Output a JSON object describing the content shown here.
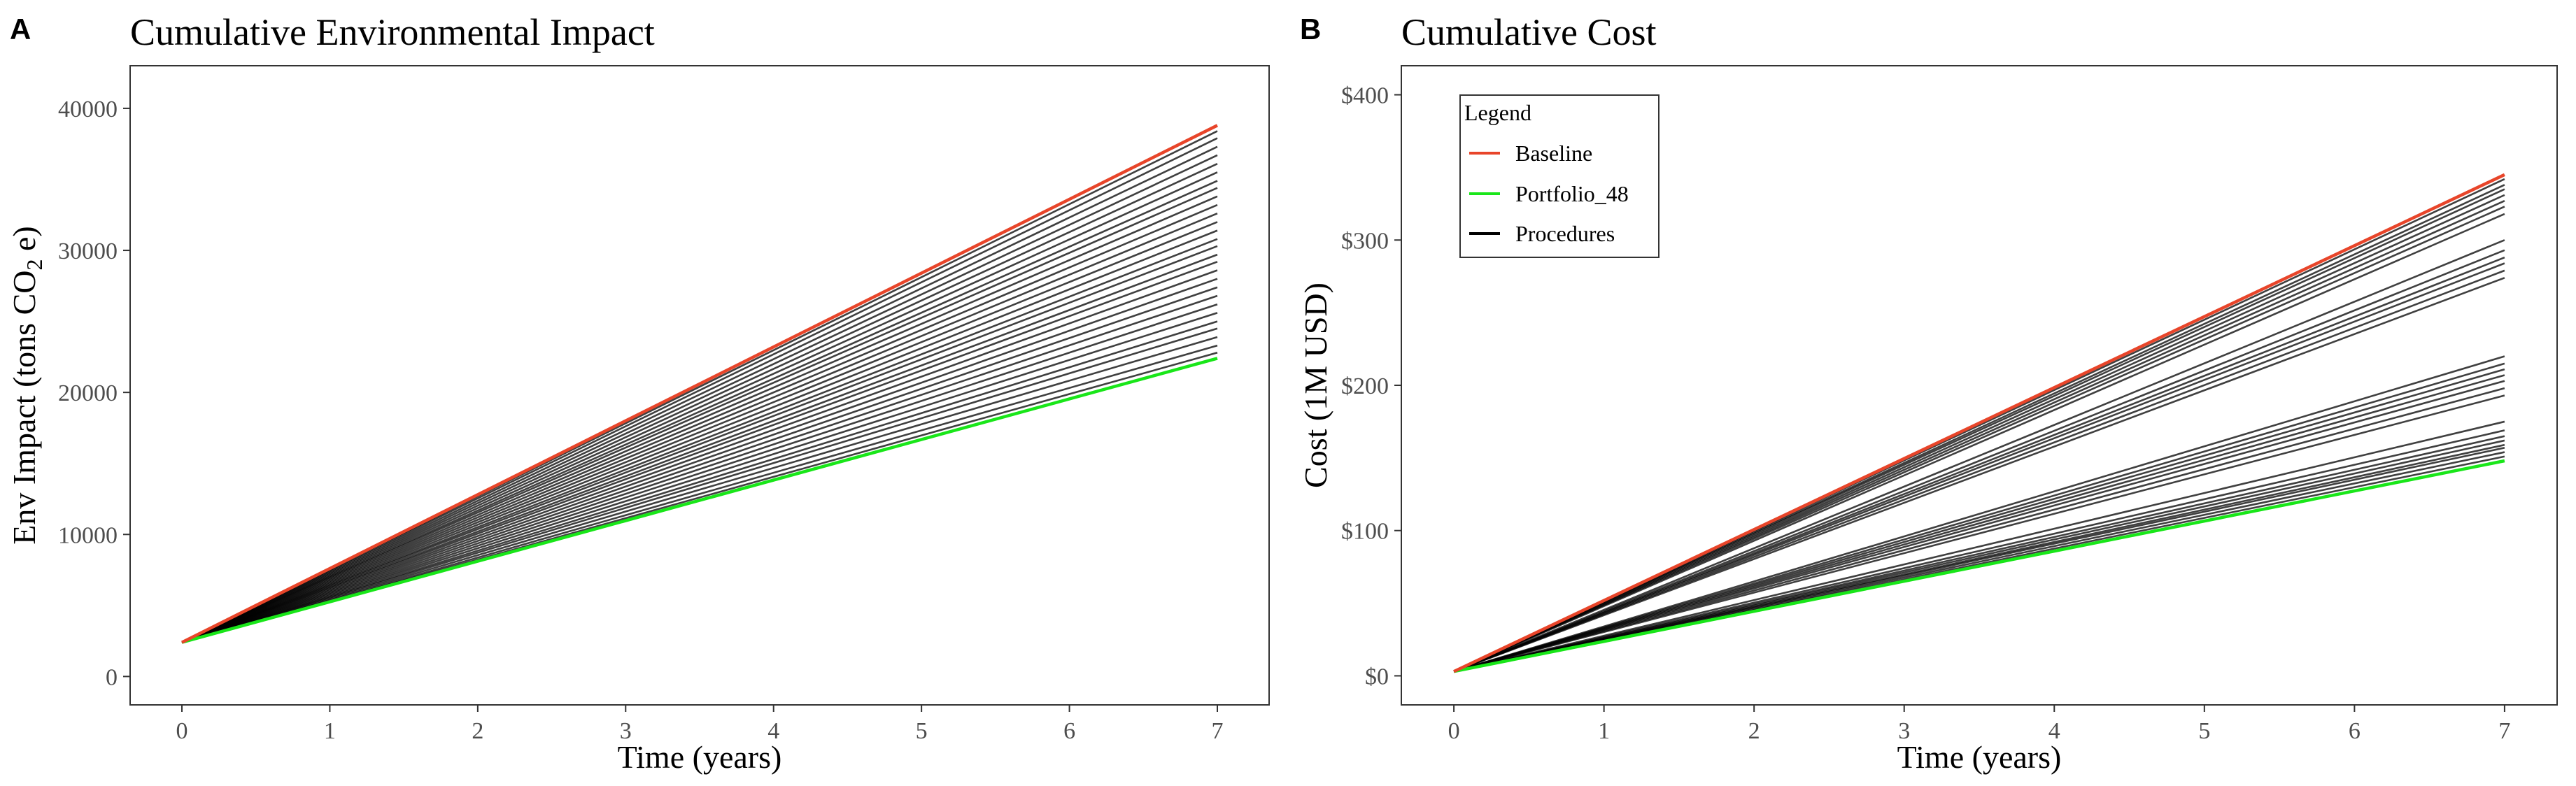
{
  "chart_data": [
    {
      "panel": "A",
      "type": "line",
      "title": "Cumulative Environmental Impact",
      "xlabel": "Time (years)",
      "ylabel": {
        "prefix": "Env Impact (tons CO",
        "subscript": "2",
        "suffix": " e)"
      },
      "xlim": [
        -0.35,
        7.35
      ],
      "ylim": [
        -2000,
        43000
      ],
      "xticks": [
        0,
        1,
        2,
        3,
        4,
        5,
        6,
        7
      ],
      "yticks": [
        0,
        10000,
        20000,
        30000,
        40000
      ],
      "ytick_labels": [
        "0",
        "10000",
        "20000",
        "30000",
        "40000"
      ],
      "x": [
        0,
        7
      ],
      "series": [
        {
          "name": "Procedures",
          "color": "#000000",
          "start": 2400,
          "end_values": [
            22800,
            23300,
            23900,
            24500,
            25000,
            25600,
            26200,
            26800,
            27400,
            28000,
            28600,
            29200,
            29700,
            30300,
            30800,
            31400,
            32000,
            32600,
            33200,
            33800,
            34400,
            34900,
            35500,
            36100,
            36700,
            37300,
            37900,
            38400
          ]
        },
        {
          "name": "Portfolio_48",
          "color": "#19e619",
          "values": [
            2400,
            22400
          ]
        },
        {
          "name": "Baseline",
          "color": "#e8452a",
          "values": [
            2400,
            38800
          ]
        }
      ]
    },
    {
      "panel": "B",
      "type": "line",
      "title": "Cumulative Cost",
      "xlabel": "Time (years)",
      "ylabel": "Cost (1M USD)",
      "xlim": [
        -0.35,
        7.35
      ],
      "ylim": [
        -20,
        420
      ],
      "xticks": [
        0,
        1,
        2,
        3,
        4,
        5,
        6,
        7
      ],
      "yticks": [
        0,
        100,
        200,
        300,
        400
      ],
      "ytick_labels": [
        "$0",
        "$100",
        "$200",
        "$300",
        "$400"
      ],
      "x": [
        0,
        7
      ],
      "series": [
        {
          "name": "Procedures",
          "color": "#000000",
          "start": 3,
          "end_values": [
            151,
            154,
            157,
            159,
            162,
            165,
            169,
            175,
            193,
            198,
            203,
            207,
            211,
            215,
            220,
            274,
            279,
            284,
            288,
            293,
            300,
            318,
            323,
            327,
            331,
            335,
            338,
            342
          ]
        },
        {
          "name": "Portfolio_48",
          "color": "#19e619",
          "values": [
            3,
            148
          ]
        },
        {
          "name": "Baseline",
          "color": "#e8452a",
          "values": [
            3,
            345
          ]
        }
      ],
      "legend": {
        "title": "Legend",
        "position": "top-left",
        "entries": [
          {
            "label": "Baseline",
            "color": "#e8452a"
          },
          {
            "label": "Portfolio_48",
            "color": "#19e619"
          },
          {
            "label": "Procedures",
            "color": "#000000"
          }
        ]
      }
    }
  ]
}
